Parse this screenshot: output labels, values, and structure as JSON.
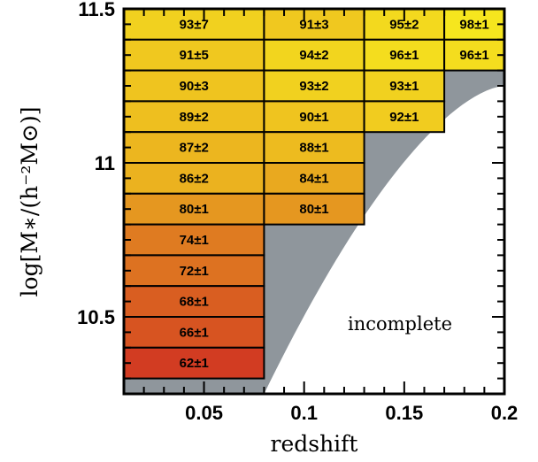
{
  "chart_data": {
    "type": "heatmap",
    "xlabel": "redshift",
    "ylabel": "log[M∗/(h⁻²M⊙)]",
    "xlim": [
      0.01,
      0.2
    ],
    "ylim": [
      10.25,
      11.5
    ],
    "x_ticks": [
      "0.05",
      "0.1",
      "0.15",
      "0.2"
    ],
    "x_tick_values": [
      0.05,
      0.1,
      0.15,
      0.2
    ],
    "y_ticks": [
      "10.5",
      "11",
      "11.5"
    ],
    "y_tick_values": [
      10.5,
      11,
      11.5
    ],
    "annotation": "incomplete",
    "colors": {
      "incomplete_gray": "#8f969c",
      "high": "#f6e61e",
      "low": "#d23c22"
    },
    "columns": [
      {
        "z_min": 0.01,
        "z_max": 0.08
      },
      {
        "z_min": 0.08,
        "z_max": 0.13
      },
      {
        "z_min": 0.13,
        "z_max": 0.17
      },
      {
        "z_min": 0.17,
        "z_max": 0.2
      }
    ],
    "mass_bins": [
      {
        "logm_min": 11.4,
        "logm_max": 11.5
      },
      {
        "logm_min": 11.3,
        "logm_max": 11.4
      },
      {
        "logm_min": 11.2,
        "logm_max": 11.3
      },
      {
        "logm_min": 11.1,
        "logm_max": 11.2
      },
      {
        "logm_min": 11.0,
        "logm_max": 11.1
      },
      {
        "logm_min": 10.9,
        "logm_max": 11.0
      },
      {
        "logm_min": 10.8,
        "logm_max": 10.9
      },
      {
        "logm_min": 10.7,
        "logm_max": 10.8
      },
      {
        "logm_min": 10.6,
        "logm_max": 10.7
      },
      {
        "logm_min": 10.5,
        "logm_max": 10.6
      },
      {
        "logm_min": 10.4,
        "logm_max": 10.5
      },
      {
        "logm_min": 10.3,
        "logm_max": 10.4
      }
    ],
    "cells": [
      {
        "col": 0,
        "row": 0,
        "value": 93,
        "error": 7,
        "label": "93±7"
      },
      {
        "col": 0,
        "row": 1,
        "value": 91,
        "error": 5,
        "label": "91±5"
      },
      {
        "col": 0,
        "row": 2,
        "value": 90,
        "error": 3,
        "label": "90±3"
      },
      {
        "col": 0,
        "row": 3,
        "value": 89,
        "error": 2,
        "label": "89±2"
      },
      {
        "col": 0,
        "row": 4,
        "value": 87,
        "error": 2,
        "label": "87±2"
      },
      {
        "col": 0,
        "row": 5,
        "value": 86,
        "error": 2,
        "label": "86±2"
      },
      {
        "col": 0,
        "row": 6,
        "value": 80,
        "error": 1,
        "label": "80±1"
      },
      {
        "col": 0,
        "row": 7,
        "value": 74,
        "error": 1,
        "label": "74±1"
      },
      {
        "col": 0,
        "row": 8,
        "value": 72,
        "error": 1,
        "label": "72±1"
      },
      {
        "col": 0,
        "row": 9,
        "value": 68,
        "error": 1,
        "label": "68±1"
      },
      {
        "col": 0,
        "row": 10,
        "value": 66,
        "error": 1,
        "label": "66±1"
      },
      {
        "col": 0,
        "row": 11,
        "value": 62,
        "error": 1,
        "label": "62±1"
      },
      {
        "col": 1,
        "row": 0,
        "value": 91,
        "error": 3,
        "label": "91±3"
      },
      {
        "col": 1,
        "row": 1,
        "value": 94,
        "error": 2,
        "label": "94±2"
      },
      {
        "col": 1,
        "row": 2,
        "value": 93,
        "error": 2,
        "label": "93±2"
      },
      {
        "col": 1,
        "row": 3,
        "value": 90,
        "error": 1,
        "label": "90±1"
      },
      {
        "col": 1,
        "row": 4,
        "value": 88,
        "error": 1,
        "label": "88±1"
      },
      {
        "col": 1,
        "row": 5,
        "value": 84,
        "error": 1,
        "label": "84±1"
      },
      {
        "col": 1,
        "row": 6,
        "value": 80,
        "error": 1,
        "label": "80±1"
      },
      {
        "col": 2,
        "row": 0,
        "value": 95,
        "error": 2,
        "label": "95±2"
      },
      {
        "col": 2,
        "row": 1,
        "value": 96,
        "error": 1,
        "label": "96±1"
      },
      {
        "col": 2,
        "row": 2,
        "value": 93,
        "error": 1,
        "label": "93±1"
      },
      {
        "col": 2,
        "row": 3,
        "value": 92,
        "error": 1,
        "label": "92±1"
      },
      {
        "col": 3,
        "row": 0,
        "value": 98,
        "error": 1,
        "label": "98±1"
      },
      {
        "col": 3,
        "row": 1,
        "value": 96,
        "error": 1,
        "label": "96±1"
      }
    ]
  }
}
